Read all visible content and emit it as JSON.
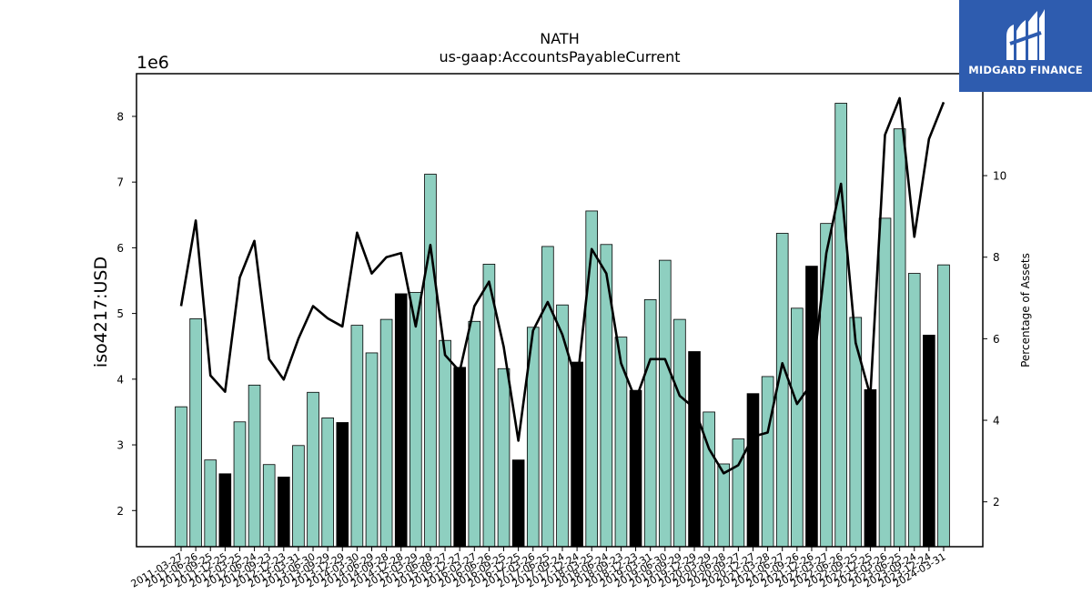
{
  "brand": {
    "name": "MIDGARD FINANCE",
    "logo_color": "#2e5caf",
    "logo_icon": "midgard-m-logo-icon"
  },
  "chart_data": {
    "type": "bar",
    "title": "NATH",
    "subtitle": "us-gaap:AccountsPayableCurrent",
    "ylabel": "iso4217:USD",
    "ylabel_right": "Percentage of Assets",
    "y_offset_label": "1e6",
    "ylim": [
      1.45,
      8.65
    ],
    "y2lim": [
      0.9,
      12.5
    ],
    "yticks": [
      2,
      3,
      4,
      5,
      6,
      7,
      8
    ],
    "y2ticks": [
      2,
      4,
      6,
      8,
      10
    ],
    "grid": false,
    "bar_color": "#8ecfc0",
    "highlight_color": "#000000",
    "line_color": "#000000",
    "categories": [
      "2011-03-27",
      "2011-06-26",
      "2011-09-25",
      "2011-12-25",
      "2012-03-25",
      "2012-06-24",
      "2012-09-23",
      "2012-12-23",
      "2013-03-31",
      "2013-06-30",
      "2013-09-29",
      "2013-12-29",
      "2014-03-30",
      "2014-06-29",
      "2014-09-28",
      "2014-12-28",
      "2015-03-29",
      "2015-06-28",
      "2015-09-27",
      "2015-12-27",
      "2016-03-27",
      "2016-06-26",
      "2016-09-25",
      "2016-12-25",
      "2017-03-26",
      "2017-06-25",
      "2017-09-24",
      "2017-12-24",
      "2018-03-25",
      "2018-06-24",
      "2018-09-23",
      "2018-12-23",
      "2019-03-31",
      "2019-06-30",
      "2019-09-29",
      "2019-12-29",
      "2020-03-29",
      "2020-06-28",
      "2020-09-27",
      "2020-12-27",
      "2021-03-28",
      "2021-06-27",
      "2021-09-26",
      "2021-12-26",
      "2022-03-27",
      "2022-06-26",
      "2022-09-25",
      "2022-12-25",
      "2023-03-26",
      "2023-06-25",
      "2023-09-24",
      "2023-12-24",
      "2024-03-31"
    ],
    "xtick_labels": [
      "2011-03-27",
      "2011-06-26",
      "2011-09-25",
      "2011-12-25",
      "2012-03-25",
      "2012-06-24",
      "2012-09-23",
      "2012-12-23",
      "2013-03-31",
      "2013-06-30",
      "2013-09-29",
      "2013-12-29",
      "2014-03-30",
      "2014-06-29",
      "2014-09-28",
      "2014-12-28",
      "2015-03-29",
      "2015-06-28",
      "2015-09-27",
      "2015-12-27",
      "2016-03-27",
      "2016-06-26",
      "2016-09-25",
      "2016-12-25",
      "2017-03-26",
      "2017-06-25",
      "2017-09-24",
      "2017-12-24",
      "2018-03-25",
      "2018-06-24",
      "2018-09-23",
      "2018-12-23",
      "2019-03-31",
      "2019-06-30",
      "2019-09-29",
      "2019-12-29",
      "2020-03-29",
      "2020-06-28",
      "2020-09-27",
      "2020-12-27",
      "2021-03-28",
      "2021-06-27",
      "2021-09-26",
      "2021-12-26",
      "2022-03-27",
      "2022-06-26",
      "2022-09-25",
      "2022-12-25",
      "2023-03-26",
      "2023-06-25",
      "2023-09-24",
      "2023-12-24",
      "2024-03-31"
    ],
    "series": [
      {
        "kind": "bar",
        "values": [
          3.58,
          4.92,
          2.77,
          2.56,
          3.35,
          3.91,
          2.7,
          2.51,
          2.99,
          3.8,
          3.41,
          3.34,
          4.82,
          4.4,
          4.91,
          5.3,
          5.32,
          7.12,
          4.59,
          4.18,
          4.88,
          5.75,
          4.16,
          2.77,
          4.79,
          6.02,
          5.13,
          4.26,
          6.56,
          6.05,
          4.64,
          3.83,
          5.21,
          5.81,
          4.91,
          4.42,
          3.5,
          2.71,
          3.09,
          3.78,
          4.04,
          6.22,
          5.08,
          5.72,
          6.37,
          8.2,
          4.94,
          3.84,
          6.45,
          7.81,
          5.61,
          4.67,
          5.74
        ],
        "highlight": [
          false,
          false,
          false,
          true,
          false,
          false,
          false,
          true,
          false,
          false,
          false,
          true,
          false,
          false,
          false,
          true,
          false,
          false,
          false,
          true,
          false,
          false,
          false,
          true,
          false,
          false,
          false,
          true,
          false,
          false,
          false,
          true,
          false,
          false,
          false,
          true,
          false,
          false,
          false,
          true,
          false,
          false,
          false,
          true,
          false,
          false,
          false,
          true,
          false,
          false,
          false,
          true,
          false
        ]
      },
      {
        "kind": "line",
        "axis": "right",
        "values": [
          6.8,
          8.9,
          5.1,
          4.7,
          7.5,
          8.4,
          5.5,
          5.0,
          6.0,
          6.8,
          6.5,
          6.3,
          8.6,
          7.6,
          8.0,
          8.1,
          6.3,
          8.3,
          5.6,
          5.2,
          6.8,
          7.4,
          5.8,
          3.5,
          6.2,
          6.9,
          6.1,
          4.9,
          8.2,
          7.6,
          5.4,
          4.5,
          5.5,
          5.5,
          4.6,
          4.3,
          3.3,
          2.7,
          2.9,
          3.6,
          3.7,
          5.4,
          4.4,
          4.9,
          8.1,
          9.8,
          5.9,
          4.6,
          11.0,
          11.9,
          8.5,
          10.9,
          11.8
        ]
      }
    ]
  }
}
